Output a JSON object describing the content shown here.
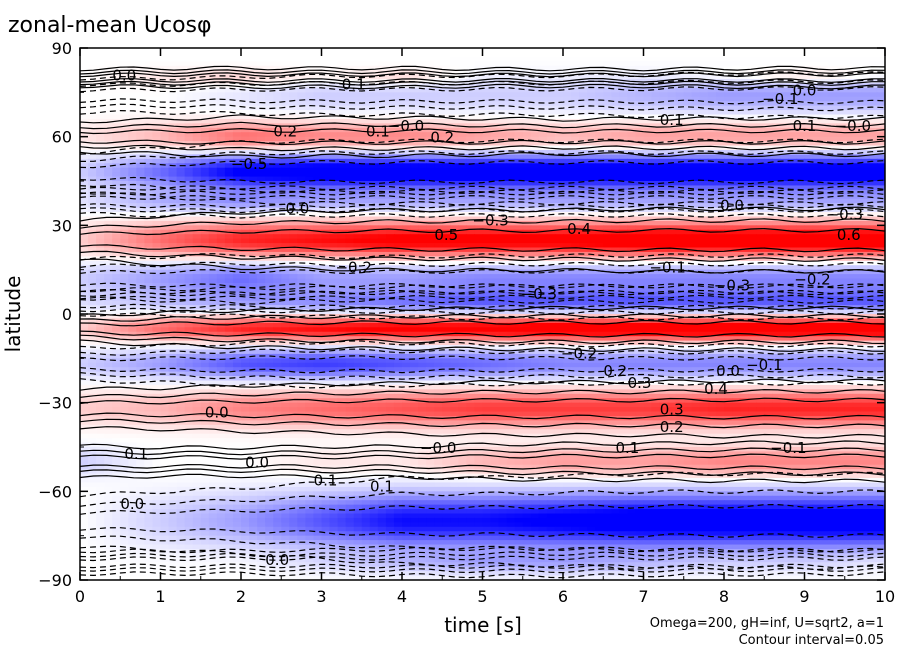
{
  "chart_data": {
    "type": "heatmap",
    "title": "zonal-mean Ucosφ",
    "xlabel": "time [s]",
    "ylabel": "latitude",
    "xlim": [
      0,
      10
    ],
    "ylim": [
      -90,
      90
    ],
    "xticks": [
      "0",
      "1",
      "2",
      "3",
      "4",
      "5",
      "6",
      "7",
      "8",
      "9",
      "10"
    ],
    "yticks": [
      "90",
      "60",
      "30",
      "0",
      "−30",
      "−60",
      "−90"
    ],
    "grid": false,
    "colormap": {
      "negative": "#0000ff",
      "zero": "#ffffff",
      "positive": "#ff0000"
    },
    "value_range": [
      -0.6,
      0.6
    ],
    "contour_interval_note": "Contour interval=0.05",
    "parameters_note": "Omega=200, gH=inf, U=sqrt2, a=1",
    "bands": [
      {
        "lat": 80,
        "width": 3,
        "values": [
          0.0,
          0.05,
          0.1,
          0.05,
          0.1,
          0.0,
          0.0,
          0.0,
          0.05,
          0.1,
          0.05
        ]
      },
      {
        "lat": 74,
        "width": 6,
        "values": [
          0.0,
          0.0,
          -0.05,
          -0.1,
          -0.1,
          -0.1,
          -0.1,
          -0.15,
          -0.2,
          -0.2,
          -0.2
        ]
      },
      {
        "lat": 60,
        "width": 5,
        "values": [
          0.05,
          0.15,
          0.3,
          0.25,
          0.25,
          0.2,
          0.15,
          0.2,
          0.2,
          0.2,
          0.2
        ]
      },
      {
        "lat": 48,
        "width": 6,
        "values": [
          -0.1,
          -0.3,
          -0.55,
          -0.6,
          -0.6,
          -0.6,
          -0.6,
          -0.6,
          -0.6,
          -0.6,
          -0.6
        ]
      },
      {
        "lat": 38,
        "width": 4,
        "values": [
          -0.05,
          -0.15,
          -0.2,
          -0.15,
          -0.15,
          -0.15,
          -0.15,
          -0.15,
          -0.15,
          -0.15,
          -0.15
        ]
      },
      {
        "lat": 25,
        "width": 6,
        "values": [
          0.1,
          0.3,
          0.45,
          0.5,
          0.55,
          0.55,
          0.55,
          0.6,
          0.6,
          0.6,
          0.6
        ]
      },
      {
        "lat": 12,
        "width": 6,
        "values": [
          -0.1,
          -0.2,
          -0.3,
          -0.2,
          -0.2,
          -0.25,
          -0.25,
          -0.25,
          -0.25,
          -0.25,
          -0.25
        ]
      },
      {
        "lat": 4,
        "width": 4,
        "values": [
          -0.05,
          -0.1,
          -0.15,
          -0.2,
          -0.25,
          -0.3,
          -0.3,
          -0.3,
          -0.3,
          -0.3,
          -0.3
        ]
      },
      {
        "lat": -5,
        "width": 4,
        "values": [
          0.1,
          0.3,
          0.45,
          0.5,
          0.55,
          0.55,
          0.6,
          0.6,
          0.6,
          0.6,
          0.6
        ]
      },
      {
        "lat": -17,
        "width": 5,
        "values": [
          -0.1,
          -0.2,
          -0.35,
          -0.4,
          -0.35,
          -0.3,
          -0.25,
          -0.25,
          -0.25,
          -0.25,
          -0.25
        ]
      },
      {
        "lat": -32,
        "width": 6,
        "values": [
          0.1,
          0.15,
          0.25,
          0.3,
          0.35,
          0.4,
          0.4,
          0.4,
          0.45,
          0.45,
          0.45
        ]
      },
      {
        "lat": -50,
        "width": 5,
        "values": [
          -0.1,
          0.0,
          0.0,
          0.05,
          0.05,
          0.15,
          0.2,
          0.2,
          0.25,
          0.25,
          0.25
        ]
      },
      {
        "lat": -70,
        "width": 9,
        "values": [
          0.0,
          -0.1,
          -0.2,
          -0.35,
          -0.5,
          -0.5,
          -0.55,
          -0.6,
          -0.6,
          -0.6,
          -0.6
        ]
      },
      {
        "lat": -84,
        "width": 4,
        "values": [
          0.0,
          0.0,
          0.0,
          -0.05,
          -0.1,
          -0.15,
          -0.15,
          -0.1,
          -0.05,
          -0.05,
          0.0
        ]
      }
    ],
    "annotations": [
      {
        "text": "0.0",
        "x": 0.55,
        "y": 79
      },
      {
        "text": "0.1",
        "x": 3.4,
        "y": 76
      },
      {
        "text": "0.0",
        "x": 9.0,
        "y": 74
      },
      {
        "text": "−0.1",
        "x": 8.7,
        "y": 71
      },
      {
        "text": "0.2",
        "x": 2.55,
        "y": 60
      },
      {
        "text": "0.1",
        "x": 3.7,
        "y": 60
      },
      {
        "text": "0.2",
        "x": 4.5,
        "y": 58
      },
      {
        "text": "−0.0",
        "x": 4.05,
        "y": 62
      },
      {
        "text": "0.1",
        "x": 7.35,
        "y": 64
      },
      {
        "text": "0.1",
        "x": 9.0,
        "y": 62
      },
      {
        "text": "−0.0",
        "x": 9.6,
        "y": 62
      },
      {
        "text": "−0.5",
        "x": 2.1,
        "y": 49
      },
      {
        "text": "0.0",
        "x": 2.7,
        "y": 34
      },
      {
        "text": "0.0",
        "x": 8.1,
        "y": 35
      },
      {
        "text": "−0.3",
        "x": 9.5,
        "y": 32
      },
      {
        "text": "−0.3",
        "x": 5.1,
        "y": 30
      },
      {
        "text": "0.4",
        "x": 6.2,
        "y": 27
      },
      {
        "text": "0.5",
        "x": 4.55,
        "y": 25
      },
      {
        "text": "0.6",
        "x": 9.55,
        "y": 25
      },
      {
        "text": "−0.1",
        "x": 7.3,
        "y": 14
      },
      {
        "text": "−0.2",
        "x": 3.4,
        "y": 14
      },
      {
        "text": "−0.3",
        "x": 8.1,
        "y": 8
      },
      {
        "text": "−0.2",
        "x": 9.1,
        "y": 10
      },
      {
        "text": "−0.3",
        "x": 5.7,
        "y": 5
      },
      {
        "text": "−0.2",
        "x": 6.2,
        "y": -15
      },
      {
        "text": "0.2",
        "x": 6.65,
        "y": -21
      },
      {
        "text": "0.0",
        "x": 8.05,
        "y": -21
      },
      {
        "text": "−0.1",
        "x": 8.5,
        "y": -19
      },
      {
        "text": "0.3",
        "x": 6.95,
        "y": -25
      },
      {
        "text": "0.4",
        "x": 7.9,
        "y": -27
      },
      {
        "text": "0.3",
        "x": 7.35,
        "y": -34
      },
      {
        "text": "0.2",
        "x": 7.35,
        "y": -40
      },
      {
        "text": "0.0",
        "x": 1.7,
        "y": -35
      },
      {
        "text": "0.1",
        "x": 0.7,
        "y": -49
      },
      {
        "text": "−0.0",
        "x": 4.45,
        "y": -47
      },
      {
        "text": "0.0",
        "x": 2.2,
        "y": -52
      },
      {
        "text": "0.1",
        "x": 6.8,
        "y": -47
      },
      {
        "text": "−0.1",
        "x": 8.8,
        "y": -47
      },
      {
        "text": "0.1",
        "x": 3.05,
        "y": -58
      },
      {
        "text": "0.1",
        "x": 3.75,
        "y": -60
      },
      {
        "text": "0.0",
        "x": 0.65,
        "y": -66
      },
      {
        "text": "0.0",
        "x": 2.45,
        "y": -85
      }
    ]
  }
}
